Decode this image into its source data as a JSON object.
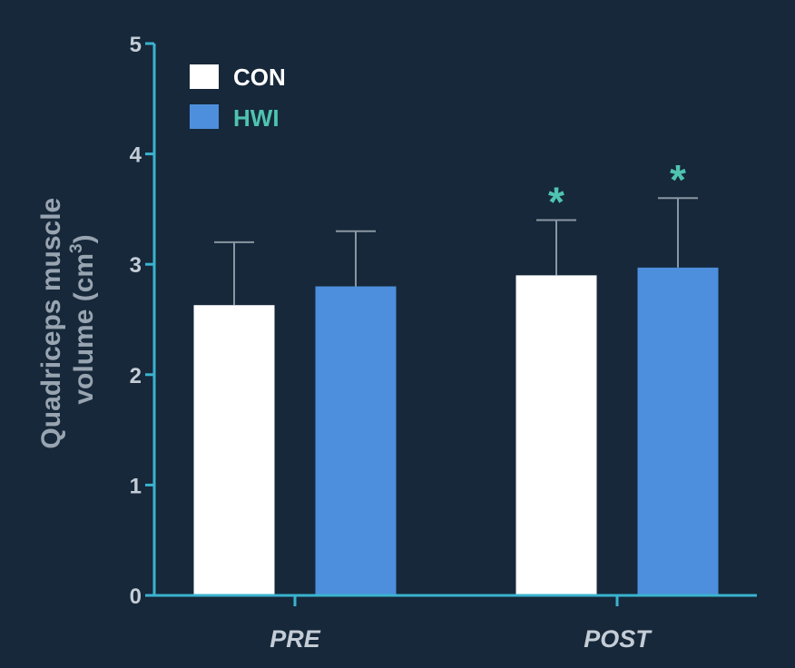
{
  "colors": {
    "background": "#16283a",
    "axis": "#3bb3cf",
    "con": "#ffffff",
    "hwi": "#4d8fdc",
    "errorbar": "#8a96a2",
    "significance": "#4fc3b0",
    "legend_hwi_text": "#4fc3b0",
    "legend_con_text": "#ffffff"
  },
  "chart_data": {
    "type": "bar",
    "ylabel_line1": "Quadriceps muscle",
    "ylabel_line2": "volume (cm",
    "ylabel_sup": "3",
    "ylabel_close": ")",
    "ylim": [
      0,
      5
    ],
    "yticks": [
      "0",
      "1",
      "2",
      "3",
      "4",
      "5"
    ],
    "categories": [
      "PRE",
      "POST"
    ],
    "legend_position": "top-left",
    "series": [
      {
        "name": "CON",
        "values": [
          2.63,
          2.9
        ],
        "errors": [
          0.57,
          0.5
        ],
        "significant": [
          false,
          true
        ]
      },
      {
        "name": "HWI",
        "values": [
          2.8,
          2.97
        ],
        "errors": [
          0.5,
          0.63
        ],
        "significant": [
          false,
          true
        ]
      }
    ],
    "significance_marker": "*"
  }
}
